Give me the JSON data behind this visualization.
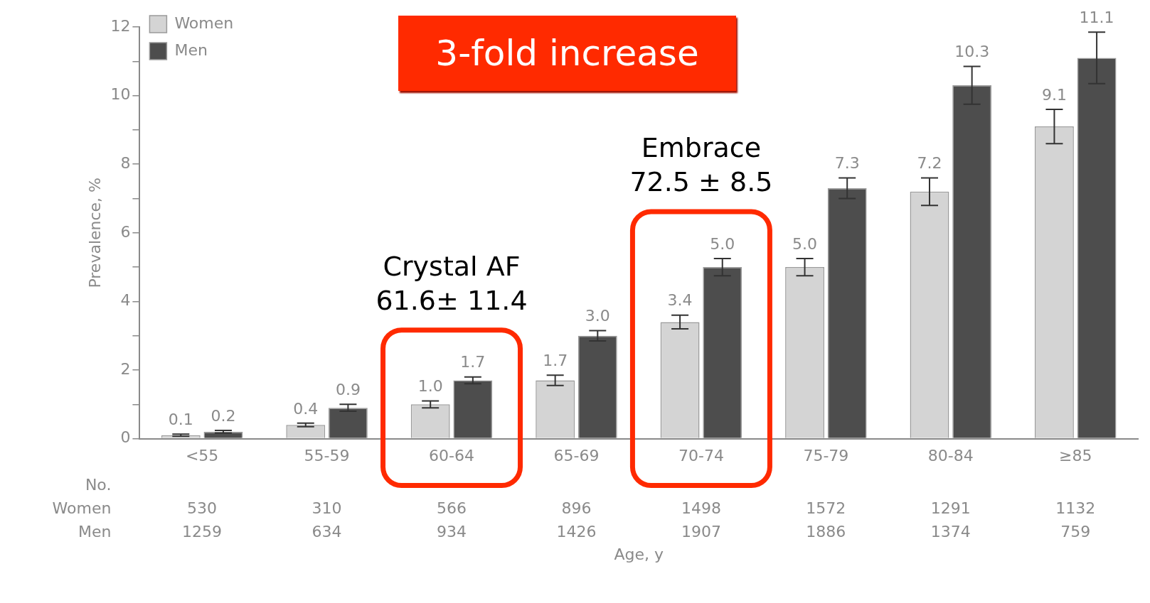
{
  "chart_data": {
    "type": "bar",
    "ylabel": "Prevalence, %",
    "categories": [
      "<55",
      "55-59",
      "60-64",
      "65-69",
      "70-74",
      "75-79",
      "80-84",
      "≥85"
    ],
    "series": [
      {
        "name": "Women",
        "color": "#d4d4d4",
        "values": [
          0.1,
          0.4,
          1.0,
          1.7,
          3.4,
          5.0,
          7.2,
          9.1
        ],
        "errors": [
          0.03,
          0.05,
          0.1,
          0.15,
          0.2,
          0.25,
          0.4,
          0.5
        ],
        "value_labels": [
          "0.1",
          "0.4",
          "1.0",
          "1.7",
          "3.4",
          "5.0",
          "7.2",
          "9.1"
        ]
      },
      {
        "name": "Men",
        "color": "#4d4d4d",
        "values": [
          0.2,
          0.9,
          1.7,
          3.0,
          5.0,
          7.3,
          10.3,
          11.1
        ],
        "errors": [
          0.04,
          0.1,
          0.1,
          0.15,
          0.25,
          0.3,
          0.55,
          0.75
        ],
        "value_labels": [
          "0.2",
          "0.9",
          "1.7",
          "3.0",
          "5.0",
          "7.3",
          "10.3",
          "11.1"
        ]
      }
    ],
    "ylim": [
      0,
      12
    ],
    "yticks": [
      0,
      {
        "value": 1,
        "label": null
      },
      2,
      {
        "value": 3,
        "label": null
      },
      4,
      {
        "value": 5,
        "label": null
      },
      6,
      {
        "value": 7,
        "label": null
      },
      8,
      {
        "value": 9,
        "label": null
      },
      10,
      {
        "value": 11,
        "label": null
      },
      12
    ],
    "grid": false,
    "legend": "top left",
    "bands": [
      {
        "axis": "x",
        "from": "60-64",
        "to": "60-64",
        "label": "Crystal AF\n61.6± 11.4"
      },
      {
        "axis": "x",
        "from": "70-74",
        "to": "70-74",
        "label": "Embrace\n72.5 ± 8.5"
      }
    ],
    "annotations": [
      "3-fold increase",
      "No.",
      "Women",
      "Men",
      "530",
      "310",
      "566",
      "896",
      "1498",
      "1572",
      "1291",
      "1132",
      "1259",
      "634",
      "934",
      "1426",
      "1907",
      "1886",
      "1374",
      "759",
      "Age, y"
    ]
  }
}
